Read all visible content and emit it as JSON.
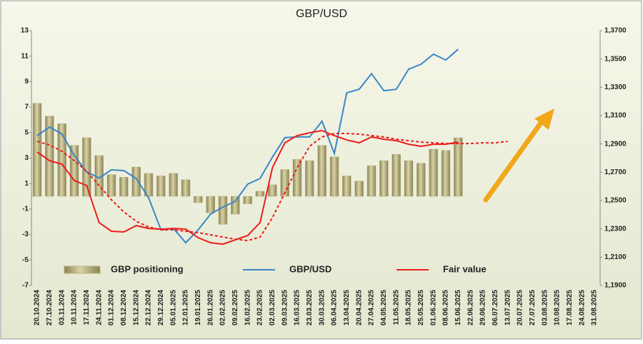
{
  "chart_data": {
    "type": "bar",
    "title": "GBP/USD",
    "categories": [
      "20.10.2024",
      "27.10.2024",
      "03.11.2024",
      "10.11.2024",
      "17.11.2024",
      "24.11.2024",
      "01.12.2024",
      "08.12.2024",
      "15.12.2024",
      "22.12.2024",
      "29.12.2024",
      "05.01.2025",
      "12.01.2025",
      "19.01.2025",
      "26.01.2025",
      "02.02.2025",
      "09.02.2025",
      "16.02.2025",
      "23.02.2025",
      "02.03.2025",
      "09.03.2025",
      "16.03.2025",
      "23.03.2025",
      "30.03.2025",
      "06.04.2025",
      "13.04.2025",
      "20.04.2025",
      "27.04.2025",
      "04.05.2025",
      "11.05.2025",
      "18.05.2025",
      "25.05.2025",
      "01.06.2025",
      "08.06.2025",
      "15.06.2025",
      "22.06.2025",
      "29.06.2025",
      "06.07.2025",
      "13.07.2025",
      "20.07.2025",
      "27.07.2025",
      "03.08.2025",
      "10.08.2025",
      "17.08.2025",
      "24.08.2025",
      "31.08.2025"
    ],
    "series": [
      {
        "name": "GBP positioning",
        "type": "bar",
        "color": "#b8b07e",
        "values": [
          7.3,
          6.3,
          5.7,
          4.0,
          4.6,
          3.2,
          1.7,
          1.5,
          2.3,
          1.8,
          1.6,
          1.8,
          1.3,
          -0.5,
          -1.3,
          -2.2,
          -1.4,
          -0.6,
          0.4,
          0.9,
          2.1,
          2.9,
          2.8,
          4.0,
          3.1,
          1.6,
          1.2,
          2.4,
          2.8,
          3.3,
          2.8,
          2.6,
          3.7,
          3.6,
          4.6,
          null,
          null,
          null,
          null,
          null,
          null,
          null,
          null,
          null,
          null,
          null
        ]
      },
      {
        "name": "GBP/USD",
        "type": "line",
        "axis": "y2",
        "color": "#3a86c8",
        "values": [
          1.2959,
          1.3019,
          1.297,
          1.2818,
          1.2702,
          1.266,
          1.2717,
          1.2712,
          1.2656,
          1.252,
          1.2293,
          1.2303,
          1.2202,
          1.2293,
          1.2404,
          1.2454,
          1.2495,
          1.2616,
          1.2656,
          1.2807,
          1.2944,
          1.2949,
          1.2949,
          1.306,
          1.2833,
          1.3261,
          1.3286,
          1.3397,
          1.3276,
          1.3286,
          1.3428,
          1.3463,
          1.3534,
          1.3493,
          1.3569,
          null,
          null,
          null,
          null,
          null,
          null,
          null,
          null,
          null,
          null,
          null
        ]
      },
      {
        "name": "Fair value",
        "type": "line",
        "axis": "y2",
        "color": "#ee1c1c",
        "values": [
          1.2843,
          1.2782,
          1.2757,
          1.2641,
          1.2606,
          1.2344,
          1.2283,
          1.2278,
          1.2323,
          1.2303,
          1.2298,
          1.2303,
          1.2298,
          1.2238,
          1.2202,
          1.2192,
          1.2222,
          1.2253,
          1.2344,
          1.2732,
          1.2908,
          1.2959,
          1.2979,
          1.2994,
          1.2959,
          1.2928,
          1.2908,
          1.2949,
          1.2933,
          1.2923,
          1.2898,
          1.2883,
          1.2898,
          1.2898,
          1.2913,
          null,
          null,
          null,
          null,
          null,
          null,
          null,
          null,
          null,
          null,
          null
        ]
      },
      {
        "type": "line",
        "dashed": true,
        "axis": "y2",
        "color": "#ee1c1c",
        "values": [
          1.2918,
          1.2893,
          1.2848,
          1.2782,
          1.2707,
          1.2606,
          1.2505,
          1.242,
          1.2354,
          1.2313,
          1.2293,
          1.2293,
          1.2283,
          1.2273,
          1.2258,
          1.2242,
          1.2227,
          1.2217,
          1.2242,
          1.2379,
          1.2555,
          1.2732,
          1.2883,
          1.2949,
          1.2974,
          1.2974,
          1.2969,
          1.2959,
          1.2949,
          1.2933,
          1.2923,
          1.2913,
          1.2908,
          1.2903,
          1.2903,
          1.2903,
          1.2908,
          1.2908,
          1.2918,
          null,
          null,
          null,
          null,
          null,
          null,
          null
        ]
      }
    ],
    "ylim": [
      -7,
      13
    ],
    "yticks": [
      -7,
      -5,
      -3,
      -1,
      1,
      3,
      5,
      7,
      9,
      11,
      13
    ],
    "y2lim": [
      1.19,
      1.37
    ],
    "y2ticks": [
      {
        "value": 1.19,
        "label": "1,1900"
      },
      {
        "value": 1.21,
        "label": "1,2100"
      },
      {
        "value": 1.23,
        "label": "1,2300"
      },
      {
        "value": 1.25,
        "label": "1,2500"
      },
      {
        "value": 1.27,
        "label": "1,2700"
      },
      {
        "value": 1.29,
        "label": "1,2900"
      },
      {
        "value": 1.31,
        "label": "1,3100"
      },
      {
        "value": 1.33,
        "label": "1,3300"
      },
      {
        "value": 1.35,
        "label": "1,3500"
      },
      {
        "value": 1.37,
        "label": "1,3700"
      }
    ]
  }
}
